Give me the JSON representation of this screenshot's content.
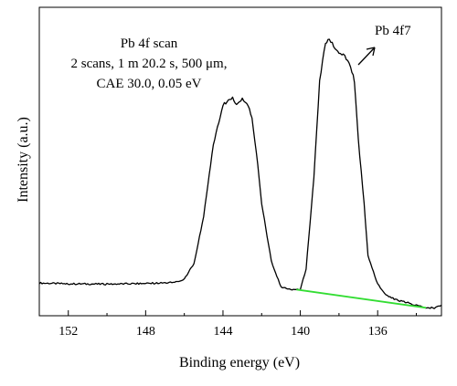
{
  "chart_data": {
    "type": "line",
    "title": "",
    "xlabel": "Binding energy (eV)",
    "ylabel": "Intensity (a.u.)",
    "x_reversed": true,
    "xlim": [
      153.5,
      132.7
    ],
    "ylim": [
      0,
      1
    ],
    "grid": false,
    "x_ticks": [
      152,
      148,
      144,
      140,
      136
    ],
    "x_tick_labels": [
      "152",
      "148",
      "144",
      "140",
      "136"
    ],
    "y_ticks_visible": false,
    "annotations": {
      "scan_info": [
        "Pb 4f scan",
        "2 scans, 1 m 20.2 s, 500 μm,",
        "CAE 30.0, 0.05 eV"
      ],
      "peak_label": "Pb 4f7"
    },
    "series": [
      {
        "color": "#000000",
        "x": [
          153.5,
          152.0,
          150.0,
          148.0,
          146.5,
          146.0,
          145.5,
          145.0,
          144.5,
          144.0,
          143.5,
          143.3,
          143.0,
          142.7,
          142.5,
          142.2,
          142.0,
          141.5,
          141.0,
          140.5,
          140.0,
          139.7,
          139.3,
          139.0,
          138.7,
          138.5,
          138.2,
          138.0,
          137.7,
          137.4,
          137.2,
          137.0,
          136.7,
          136.5,
          136.0,
          135.5,
          135.0,
          134.5,
          134.0,
          133.5,
          133.0,
          132.7
        ],
        "y": [
          0.045,
          0.042,
          0.041,
          0.043,
          0.047,
          0.06,
          0.12,
          0.3,
          0.58,
          0.73,
          0.76,
          0.73,
          0.75,
          0.73,
          0.68,
          0.5,
          0.35,
          0.13,
          0.03,
          0.02,
          0.02,
          0.1,
          0.45,
          0.82,
          0.97,
          0.98,
          0.95,
          0.93,
          0.92,
          0.88,
          0.82,
          0.6,
          0.35,
          0.15,
          0.04,
          -0.005,
          -0.02,
          -0.03,
          -0.04,
          -0.05,
          -0.05,
          -0.04
        ]
      },
      {
        "color": "#33dd33",
        "x": [
          140.2,
          133.5
        ],
        "y": [
          0.02,
          -0.05
        ]
      }
    ]
  }
}
